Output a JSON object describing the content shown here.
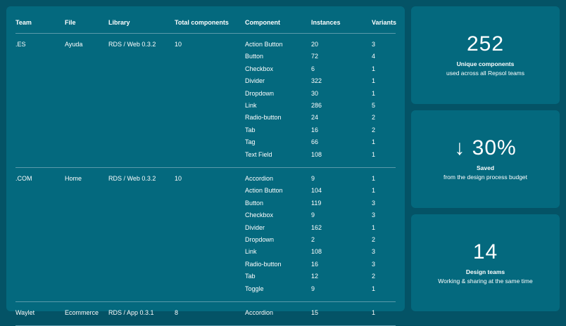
{
  "table": {
    "headers": {
      "team": "Team",
      "file": "File",
      "library": "Library",
      "total": "Total components",
      "component": "Component",
      "instances": "Instances",
      "variants": "Variants"
    },
    "groups": [
      {
        "team": ".ES",
        "file": "Ayuda",
        "library": "RDS / Web 0.3.2",
        "total": "10",
        "rows": [
          {
            "component": "Action Button",
            "instances": "20",
            "variants": "3"
          },
          {
            "component": "Button",
            "instances": "72",
            "variants": "4"
          },
          {
            "component": "Checkbox",
            "instances": "6",
            "variants": "1"
          },
          {
            "component": "Divider",
            "instances": "322",
            "variants": "1"
          },
          {
            "component": "Dropdown",
            "instances": "30",
            "variants": "1"
          },
          {
            "component": "Link",
            "instances": "286",
            "variants": "5"
          },
          {
            "component": "Radio-button",
            "instances": "24",
            "variants": "2"
          },
          {
            "component": "Tab",
            "instances": "16",
            "variants": "2"
          },
          {
            "component": "Tag",
            "instances": "66",
            "variants": "1"
          },
          {
            "component": "Text Field",
            "instances": "108",
            "variants": "1"
          }
        ]
      },
      {
        "team": ".COM",
        "file": "Home",
        "library": "RDS / Web 0.3.2",
        "total": "10",
        "rows": [
          {
            "component": "Accordion",
            "instances": "9",
            "variants": "1"
          },
          {
            "component": "Action Button",
            "instances": "104",
            "variants": "1"
          },
          {
            "component": "Button",
            "instances": "119",
            "variants": "3"
          },
          {
            "component": "Checkbox",
            "instances": "9",
            "variants": "3"
          },
          {
            "component": "Divider",
            "instances": "162",
            "variants": "1"
          },
          {
            "component": "Dropdown",
            "instances": "2",
            "variants": "2"
          },
          {
            "component": "Link",
            "instances": "108",
            "variants": "3"
          },
          {
            "component": "Radio-button",
            "instances": "16",
            "variants": "3"
          },
          {
            "component": "Tab",
            "instances": "12",
            "variants": "2"
          },
          {
            "component": "Toggle",
            "instances": "9",
            "variants": "1"
          }
        ]
      },
      {
        "team": "Waylet",
        "file": "Ecommerce",
        "library": "RDS / App 0.3.1",
        "total": "8",
        "rows": [
          {
            "component": "Accordion",
            "instances": "15",
            "variants": "1"
          }
        ]
      }
    ]
  },
  "stats": [
    {
      "value": "252",
      "title": "Unique components",
      "subtitle": "used across all Repsol teams"
    },
    {
      "value": "↓ 30%",
      "title": "Saved",
      "subtitle": "from the design process budget"
    },
    {
      "value": "14",
      "title": "Design teams",
      "subtitle": "Working & sharing at the same time"
    }
  ],
  "colors": {
    "background": "#045366",
    "panel": "#04697e",
    "divider": "#5a9aab"
  }
}
